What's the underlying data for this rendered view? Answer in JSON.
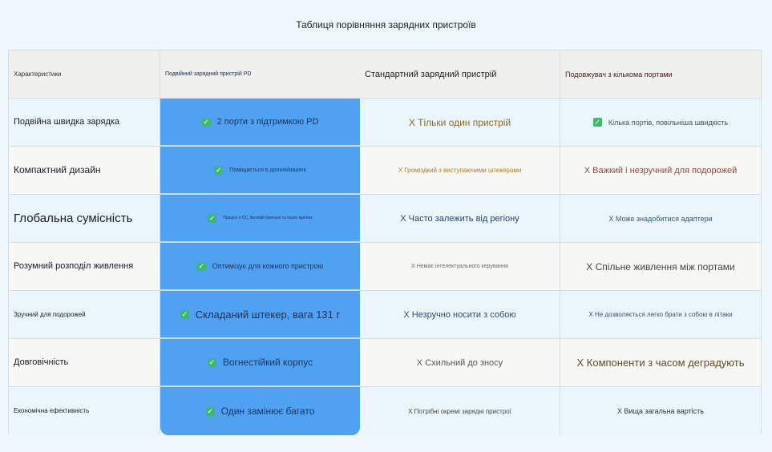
{
  "title": "Таблиця порівняння зарядних пристроїв",
  "headers": [
    "Характеристики",
    "Подвійний зарядний пристрій PD",
    "Стандартний зарядний пристрій",
    "Подовжувач з кількома портами"
  ],
  "rows": [
    {
      "feature": "Подвійна швидка зарядка",
      "pd": "2 порти з підтримкою PD",
      "standard": "X Тільки один пристрій",
      "extension": "Кілька портів, повільніша швидкість",
      "extension_check": true
    },
    {
      "feature": "Компактний дизайн",
      "pd": "Поміщається в долоні/кишені",
      "standard": "X Громіздкий з виступаючими штекерами",
      "extension": "X Важкий і незручний для подорожей"
    },
    {
      "feature": "Глобальна сумісність",
      "pd": "Працює в ЄС, Великій Британії та інших країнах",
      "standard": "X Часто залежить від регіону",
      "extension": "X Може знадобитися адаптери"
    },
    {
      "feature": "Розумний розподіл живлення",
      "pd": "Оптимізує для кожного пристрою",
      "standard": "X Немає інтелектуального керування",
      "extension": "X Спільне живлення між портами"
    },
    {
      "feature": "Зручний для подорожей",
      "pd": "Складаний штекер, вага 131 г",
      "standard": "X Незручно носити з собою",
      "extension": "X Не дозволяється легко брати з собою в літаки"
    },
    {
      "feature": "Довговічність",
      "pd": "Вогнестійкий корпус",
      "standard": "X Схильний до зносу",
      "extension": "X Компоненти з часом деградують"
    },
    {
      "feature": "Економічна ефективність",
      "pd": "Один замінює багато",
      "standard": "X Потрібні окремі зарядні пристрої",
      "extension": "X Вища загальна вартість"
    }
  ],
  "colors": {
    "highlight": "#50a1f2",
    "check": "#3cb96a"
  }
}
